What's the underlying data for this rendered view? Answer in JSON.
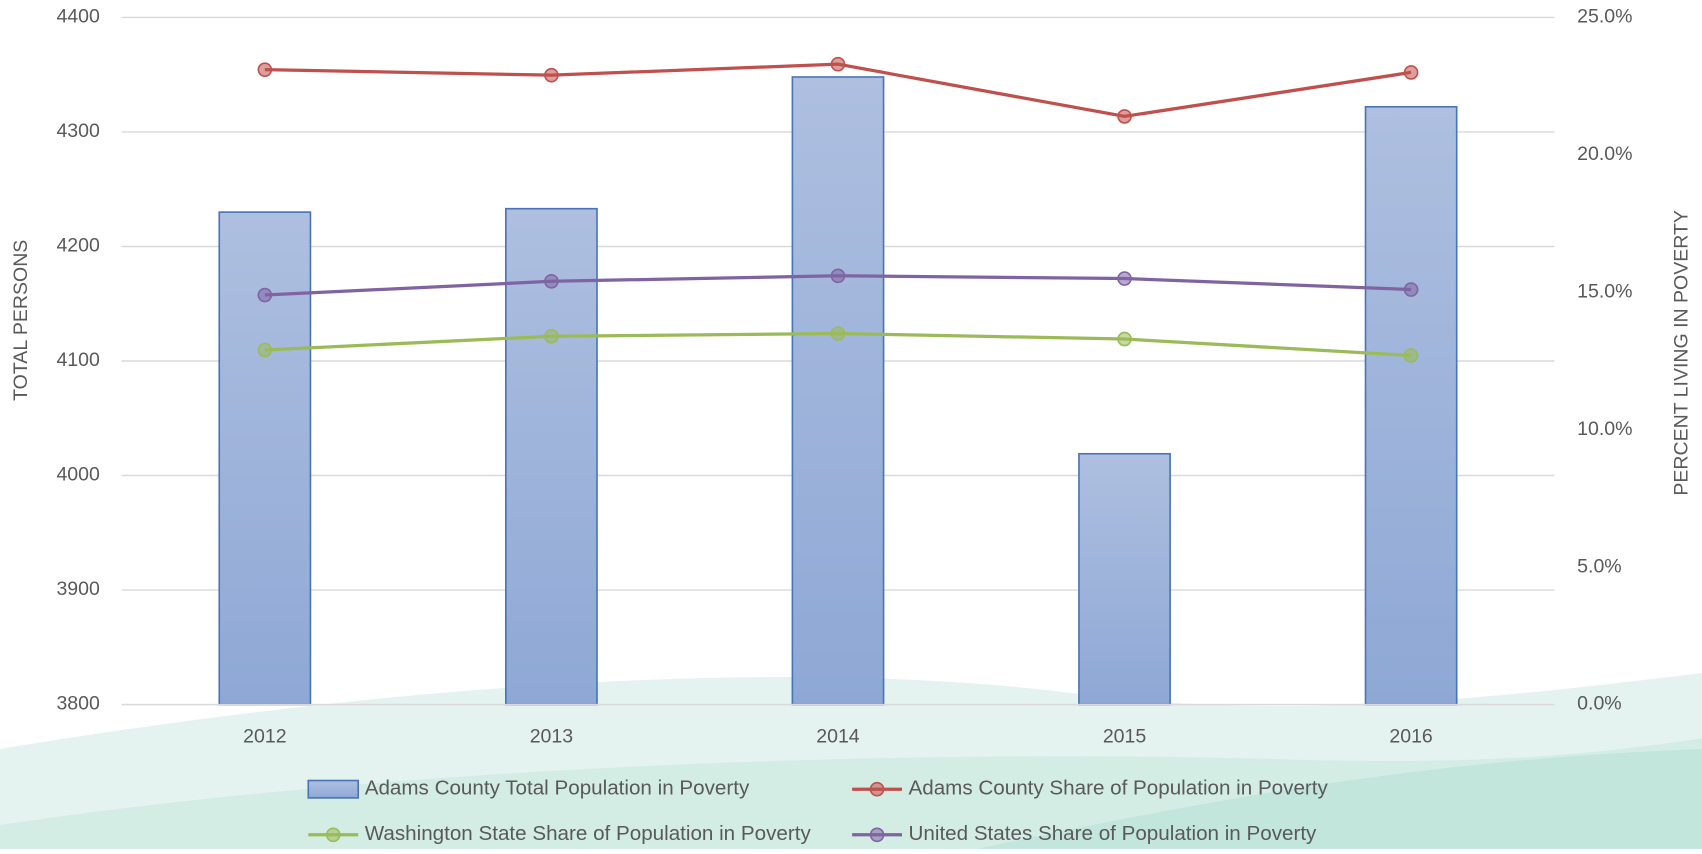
{
  "chart_data": {
    "type": "bar-line",
    "categories": [
      "2012",
      "2013",
      "2014",
      "2015",
      "2016"
    ],
    "ylabel": "TOTAL PERSONS",
    "y2label": "PERCENT LIVING IN POVERTY",
    "ylim": [
      3800,
      4400
    ],
    "yticks": [
      3800,
      3900,
      4000,
      4100,
      4200,
      4300,
      4400
    ],
    "y2lim": [
      0,
      25
    ],
    "y2ticks": [
      {
        "value": 0,
        "label": "0.0%"
      },
      {
        "value": 5,
        "label": "5.0%"
      },
      {
        "value": 10,
        "label": "10.0%"
      },
      {
        "value": 15,
        "label": "15.0%"
      },
      {
        "value": 20,
        "label": "20.0%"
      },
      {
        "value": 25,
        "label": "25.0%"
      }
    ],
    "grid": true,
    "series": [
      {
        "name": "Adams County Total Population in Poverty",
        "type": "bar",
        "color": "#8faad6",
        "values": [
          4230,
          4233,
          4348,
          4019,
          4322
        ]
      },
      {
        "name": "Adams County Share of Population in Poverty",
        "type": "line",
        "axis": "y2",
        "color": "#c0504d",
        "values": [
          23.1,
          22.9,
          23.3,
          21.4,
          23.0
        ]
      },
      {
        "name": "Washington State Share of Population in Poverty",
        "type": "line",
        "axis": "y2",
        "color": "#9bbb59",
        "values": [
          12.9,
          13.4,
          13.5,
          13.3,
          12.7
        ]
      },
      {
        "name": "United States Share of Population in Poverty",
        "type": "line",
        "axis": "y2",
        "color": "#8064a2",
        "values": [
          14.9,
          15.4,
          15.6,
          15.5,
          15.1
        ]
      }
    ]
  }
}
